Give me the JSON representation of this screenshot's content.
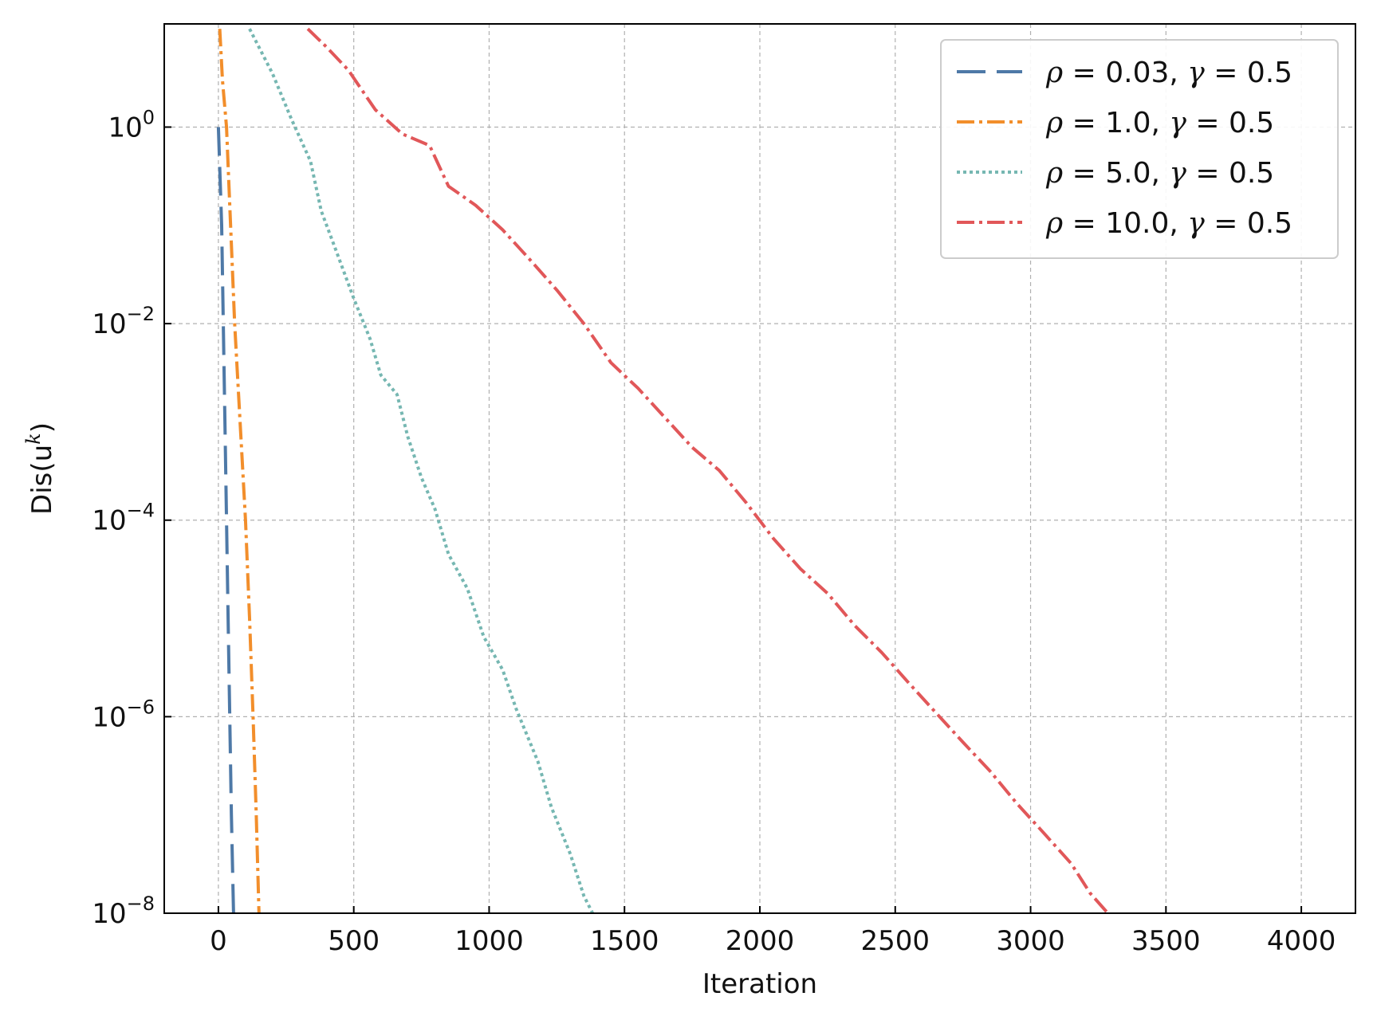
{
  "chart_data": {
    "type": "line",
    "xlabel": "Iteration",
    "ylabel": "Dis(u",
    "ylabel_sup": "k",
    "ylabel_close": ")",
    "xlim": [
      -200,
      4200
    ],
    "ylim_exp": [
      -8,
      1.05
    ],
    "yscale": "log",
    "grid": true,
    "legend_position": "top-right",
    "x_ticks": [
      {
        "value": 0,
        "label": "0"
      },
      {
        "value": 500,
        "label": "500"
      },
      {
        "value": 1000,
        "label": "1000"
      },
      {
        "value": 1500,
        "label": "1500"
      },
      {
        "value": 2000,
        "label": "2000"
      },
      {
        "value": 2500,
        "label": "2500"
      },
      {
        "value": 3000,
        "label": "3000"
      },
      {
        "value": 3500,
        "label": "3500"
      },
      {
        "value": 4000,
        "label": "4000"
      }
    ],
    "y_ticks": [
      {
        "exp": 0,
        "base": "10",
        "sup": "0"
      },
      {
        "exp": -2,
        "base": "10",
        "sup": "−2"
      },
      {
        "exp": -4,
        "base": "10",
        "sup": "−4"
      },
      {
        "exp": -6,
        "base": "10",
        "sup": "−6"
      },
      {
        "exp": -8,
        "base": "10",
        "sup": "−8"
      }
    ],
    "series": [
      {
        "name": "ρ = 0.03,  γ = 0.5",
        "rho_label": "0.03",
        "gamma_label": "0.5",
        "color": "#4e79a7",
        "dash": "36,14",
        "points": [
          [
            0,
            1.0
          ],
          [
            12,
            0.1
          ],
          [
            24,
            0.001
          ],
          [
            36,
            1e-05
          ],
          [
            48,
            1e-07
          ],
          [
            56,
            1e-08
          ]
        ]
      },
      {
        "name": "ρ = 1.0,  γ = 0.5",
        "rho_label": "1.0",
        "gamma_label": "0.5",
        "color": "#f28e2b",
        "dash": "22,6,4,6",
        "points": [
          [
            5,
            10
          ],
          [
            15,
            3.0
          ],
          [
            30,
            1.0
          ],
          [
            45,
            0.1
          ],
          [
            60,
            0.01
          ],
          [
            80,
            0.001
          ],
          [
            100,
            0.0001
          ],
          [
            115,
            1e-05
          ],
          [
            128,
            1e-06
          ],
          [
            140,
            1e-07
          ],
          [
            150,
            1e-08
          ]
        ]
      },
      {
        "name": "ρ = 5.0,  γ = 0.5",
        "rho_label": "5.0",
        "gamma_label": "0.5",
        "color": "#76b7b2",
        "dash": "4,4",
        "points": [
          [
            115,
            10
          ],
          [
            200,
            3.5
          ],
          [
            270,
            1.2
          ],
          [
            340,
            0.45
          ],
          [
            380,
            0.14
          ],
          [
            430,
            0.06
          ],
          [
            500,
            0.018
          ],
          [
            560,
            0.007
          ],
          [
            600,
            0.003
          ],
          [
            660,
            0.0019
          ],
          [
            700,
            0.0007
          ],
          [
            750,
            0.00027
          ],
          [
            800,
            0.00013
          ],
          [
            850,
            4.5e-05
          ],
          [
            920,
            2e-05
          ],
          [
            980,
            6.5e-06
          ],
          [
            1050,
            3e-06
          ],
          [
            1100,
            1.2e-06
          ],
          [
            1180,
            3.5e-07
          ],
          [
            1230,
            1.2e-07
          ],
          [
            1300,
            4e-08
          ],
          [
            1350,
            1.5e-08
          ],
          [
            1400,
            8e-09
          ],
          [
            1430,
            3e-09
          ]
        ]
      },
      {
        "name": "ρ = 10.0,  γ = 0.5",
        "rho_label": "10.0",
        "gamma_label": "0.5",
        "color": "#e15759",
        "dash": "22,6,4,6",
        "points": [
          [
            330,
            10
          ],
          [
            400,
            6.5
          ],
          [
            480,
            3.8
          ],
          [
            580,
            1.5
          ],
          [
            680,
            0.85
          ],
          [
            780,
            0.65
          ],
          [
            850,
            0.25
          ],
          [
            950,
            0.16
          ],
          [
            1050,
            0.09
          ],
          [
            1150,
            0.045
          ],
          [
            1250,
            0.022
          ],
          [
            1350,
            0.01
          ],
          [
            1450,
            0.004
          ],
          [
            1550,
            0.0022
          ],
          [
            1650,
            0.0011
          ],
          [
            1750,
            0.00055
          ],
          [
            1850,
            0.00032
          ],
          [
            1950,
            0.00015
          ],
          [
            2050,
            6.5e-05
          ],
          [
            2150,
            3.2e-05
          ],
          [
            2250,
            1.8e-05
          ],
          [
            2350,
            8.5e-06
          ],
          [
            2450,
            4.5e-06
          ],
          [
            2550,
            2.2e-06
          ],
          [
            2650,
            1.1e-06
          ],
          [
            2750,
            5.5e-07
          ],
          [
            2850,
            2.8e-07
          ],
          [
            2950,
            1.3e-07
          ],
          [
            3050,
            6.5e-08
          ],
          [
            3150,
            3.2e-08
          ],
          [
            3220,
            1.6e-08
          ],
          [
            3300,
            9e-09
          ],
          [
            3320,
            7e-09
          ]
        ]
      }
    ]
  }
}
